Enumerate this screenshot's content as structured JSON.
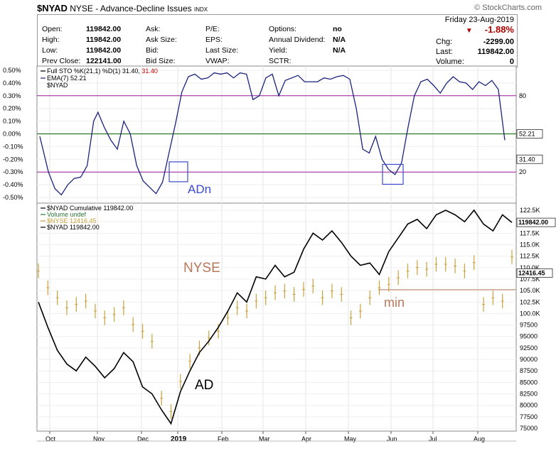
{
  "header": {
    "symbol": "$NYAD",
    "exchange_name": "NYSE - Advance-Decline Issues",
    "exchange_type": "INDX",
    "brand": "© StockCharts.com",
    "date": "Friday 23-Aug-2019",
    "change_pct": "-1.88%",
    "change_label": "Chg:",
    "change": "-2299.00",
    "last_label": "Last:",
    "last": "119842.00",
    "volume_label": "Volume:",
    "volume": "0",
    "quote_rows": [
      [
        [
          "Open:",
          "119842.00"
        ],
        [
          "Ask:",
          ""
        ],
        [
          "P/E:",
          ""
        ],
        [
          "Options:",
          "no"
        ]
      ],
      [
        [
          "High:",
          "119842.00"
        ],
        [
          "Ask Size:",
          ""
        ],
        [
          "EPS:",
          ""
        ],
        [
          "Annual Dividend:",
          "N/A"
        ]
      ],
      [
        [
          "Low:",
          "119842.00"
        ],
        [
          "Bid:",
          ""
        ],
        [
          "Last Size:",
          ""
        ],
        [
          "Yield:",
          "N/A"
        ]
      ],
      [
        [
          "Prev Close:",
          "122141.00"
        ],
        [
          "Bid Size:",
          ""
        ],
        [
          "VWAP:",
          ""
        ],
        [
          "SCTR:",
          ""
        ]
      ]
    ]
  },
  "colors": {
    "line": "#1a237e",
    "overbought": "#9c1a9c",
    "zero": "#006400",
    "nyse": "#c8a23c",
    "annot_blue": "#3a4bd0",
    "annot_tan": "#b8785a",
    "neg": "#b00000"
  },
  "chart_data": [
    {
      "type": "line",
      "title": "Full STO %K(21,1) %D(1) 31.40, 31.40",
      "legend": [
        "Full STO %K(21,1) %D(1) 31.40, 31.40",
        "EMA(7) 52.21",
        "$NYAD"
      ],
      "y_ticks": [
        "0.50%",
        "0.40%",
        "0.30%",
        "0.20%",
        "0.10%",
        "0.00%",
        "-0.10%",
        "-0.20%",
        "-0.30%",
        "-0.40%",
        "-0.50%"
      ],
      "ylim": [
        -0.5,
        0.5
      ],
      "right_labels": [
        "80",
        "52.21",
        "31.40",
        "20"
      ],
      "reference_lines": [
        0.3,
        0.0,
        -0.3
      ],
      "series_x": [
        0,
        4,
        7,
        10,
        13,
        16,
        19,
        22,
        25,
        27,
        30,
        33,
        36,
        39,
        42,
        45,
        48,
        51,
        54,
        57,
        60,
        63,
        66,
        69,
        72,
        75,
        78,
        81,
        84,
        87,
        90,
        93,
        96,
        99,
        102,
        105,
        108,
        111,
        114,
        117,
        120,
        123,
        126,
        129,
        132,
        135,
        138,
        141,
        144,
        147,
        150,
        153,
        156,
        159,
        162,
        165,
        168,
        171,
        174,
        177,
        180,
        183,
        186,
        189,
        192,
        195,
        198,
        201,
        204,
        207,
        210,
        213,
        216
      ],
      "values": [
        -0.02,
        -0.3,
        -0.43,
        -0.48,
        -0.4,
        -0.35,
        -0.34,
        -0.25,
        0.1,
        0.17,
        0.05,
        -0.05,
        -0.12,
        0.1,
        0.0,
        -0.25,
        -0.37,
        -0.42,
        -0.47,
        -0.38,
        -0.15,
        0.08,
        0.33,
        0.45,
        0.47,
        0.43,
        0.44,
        0.48,
        0.47,
        0.48,
        0.44,
        0.48,
        0.47,
        0.27,
        0.3,
        0.44,
        0.47,
        0.3,
        0.42,
        0.44,
        0.46,
        0.41,
        0.41,
        0.41,
        0.44,
        0.43,
        0.45,
        0.46,
        0.43,
        0.2,
        -0.12,
        -0.15,
        -0.02,
        -0.2,
        -0.28,
        -0.32,
        -0.23,
        0.05,
        0.3,
        0.41,
        0.43,
        0.38,
        0.32,
        0.4,
        0.45,
        0.41,
        0.4,
        0.35,
        0.41,
        0.38,
        0.42,
        0.35,
        -0.05
      ],
      "annotation": "ADn"
    },
    {
      "type": "line",
      "title": "$NYAD Cumulative 119842.00",
      "legend": [
        "$NYAD Cumulative 119842.00",
        "Volume undef",
        "$NYSE 12416.45",
        "$NYAD 119842.00"
      ],
      "y_ticks": [
        "122.5K",
        "120.0K",
        "117.5K",
        "115.0K",
        "112.5K",
        "110.0K",
        "107.5K",
        "105.0K",
        "102.5K",
        "100.0K",
        "97500",
        "95000",
        "92500",
        "90000",
        "87500",
        "85000",
        "82500",
        "80000",
        "77500",
        "75000"
      ],
      "ylim": [
        75000,
        122500
      ],
      "x_ticks": [
        "Oct",
        "Nov",
        "Dec",
        "2019",
        "Feb",
        "Mar",
        "Apr",
        "May",
        "Jun",
        "Jul",
        "Aug"
      ],
      "series": [
        {
          "name": "$NYAD",
          "values": [
            102500,
            97000,
            92000,
            89000,
            87500,
            90500,
            88500,
            86000,
            88000,
            91500,
            89500,
            84000,
            82500,
            79000,
            76000,
            83000,
            87500,
            91500,
            94000,
            97000,
            100500,
            104500,
            102500,
            108000,
            107500,
            110500,
            108000,
            109000,
            114000,
            117500,
            116000,
            118000,
            115500,
            112500,
            110500,
            111000,
            108500,
            113500,
            116500,
            119500,
            120500,
            118500,
            121500,
            122500,
            121500,
            120000,
            122500,
            119500,
            118000,
            121500,
            119842
          ]
        },
        {
          "name": "$NYSE",
          "values": [
            12000,
            11500,
            11200,
            10900,
            11000,
            11100,
            10800,
            10600,
            10700,
            10900,
            10400,
            10200,
            9900,
            8200,
            7800,
            8700,
            9300,
            9700,
            10000,
            10200,
            10600,
            10900,
            10800,
            11100,
            11200,
            11350,
            11400,
            11300,
            11450,
            11550,
            11200,
            11400,
            11300,
            10600,
            10800,
            11200,
            11500,
            11600,
            11800,
            12000,
            12100,
            12050,
            12200,
            12200,
            12150,
            12000,
            12250,
            11000,
            11200,
            11100,
            12416
          ]
        }
      ],
      "right_labels": [
        "119842.00",
        "12416.45"
      ],
      "reference_line": 105200,
      "annotations": [
        "NYSE",
        "AD",
        "min"
      ]
    }
  ]
}
